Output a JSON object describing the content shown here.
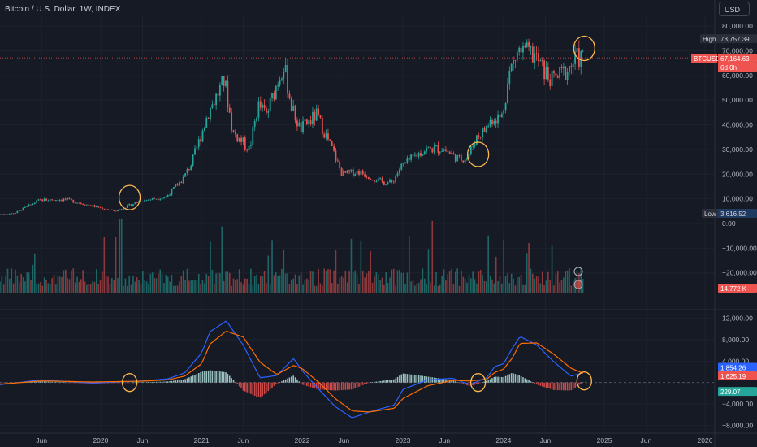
{
  "header": {
    "title": "Bitcoin / U.S. Dollar, 1W, INDEX",
    "currency_button": "USD"
  },
  "price_labels": {
    "high_tag": "High",
    "high_value": "73,757.39",
    "last_symbol": "BTCUSD",
    "last_value": "67,164.63",
    "countdown": "6d 0h",
    "low_tag": "Low",
    "low_value": "3,616.52",
    "volume_value": "14.772 K"
  },
  "colors": {
    "background": "#161a25",
    "up": "#26a69a",
    "down": "#ef5350",
    "macd_line": "#2962ff",
    "signal_line": "#ff6d00",
    "circle": "#ffb74d"
  },
  "chart_data": [
    {
      "type": "line",
      "name": "price",
      "x_start": "2019-01-01",
      "x_end": "2026-01-01",
      "x": [
        "2019-01",
        "2019-03",
        "2019-06",
        "2019-09",
        "2019-12",
        "2020-03",
        "2020-06",
        "2020-09",
        "2020-11",
        "2020-12",
        "2021-01",
        "2021-02",
        "2021-04",
        "2021-05",
        "2021-07",
        "2021-08",
        "2021-09",
        "2021-11",
        "2021-12",
        "2022-01",
        "2022-03",
        "2022-05",
        "2022-06",
        "2022-08",
        "2022-11",
        "2022-12",
        "2023-01",
        "2023-03",
        "2023-04",
        "2023-06",
        "2023-08",
        "2023-09",
        "2023-10",
        "2023-11",
        "2023-12",
        "2024-01",
        "2024-02",
        "2024-03",
        "2024-05",
        "2024-06",
        "2024-07",
        "2024-08",
        "2024-09",
        "2024-10",
        "2024-10-20"
      ],
      "y": [
        3700,
        4100,
        9500,
        9800,
        7300,
        5000,
        9200,
        10800,
        18000,
        24000,
        34000,
        45000,
        58000,
        37000,
        30000,
        48000,
        44000,
        65000,
        47000,
        38000,
        44000,
        29000,
        20000,
        21000,
        16500,
        16800,
        23000,
        28000,
        30000,
        30500,
        26000,
        27000,
        35000,
        38000,
        43000,
        43000,
        62000,
        70000,
        68000,
        62000,
        58000,
        60000,
        63000,
        67000,
        67164.63
      ],
      "ylim": [
        -28000,
        84000
      ],
      "y_ticks": [
        "80,000.00",
        "70,000.00",
        "60,000.00",
        "50,000.00",
        "40,000.00",
        "30,000.00",
        "20,000.00",
        "10,000.00",
        "0.00",
        "−10,000.00",
        "−20,000.00"
      ],
      "high": 73757.39,
      "low": 3616.52,
      "last": 67164.63
    },
    {
      "type": "line",
      "name": "macd",
      "x": [
        "2019-01",
        "2019-06",
        "2019-12",
        "2020-06",
        "2020-09",
        "2020-11",
        "2021-01",
        "2021-02",
        "2021-04",
        "2021-06",
        "2021-08",
        "2021-10",
        "2021-12",
        "2022-01",
        "2022-03",
        "2022-05",
        "2022-07",
        "2022-09",
        "2022-12",
        "2023-01",
        "2023-04",
        "2023-07",
        "2023-09",
        "2023-11",
        "2023-12",
        "2024-01",
        "2024-02",
        "2024-03",
        "2024-05",
        "2024-07",
        "2024-09",
        "2024-10-20"
      ],
      "macd": [
        -400,
        500,
        -100,
        300,
        700,
        1800,
        5500,
        9500,
        11500,
        7000,
        900,
        1300,
        4500,
        2200,
        -1200,
        -4500,
        -6600,
        -5500,
        -4200,
        -1300,
        500,
        800,
        -400,
        900,
        3000,
        3500,
        6300,
        8600,
        7000,
        3900,
        1200,
        1854.26
      ],
      "signal": [
        -300,
        300,
        100,
        250,
        500,
        1200,
        3500,
        7200,
        9600,
        8500,
        3800,
        1500,
        3200,
        2600,
        100,
        -3000,
        -5300,
        -5500,
        -4800,
        -3000,
        -600,
        400,
        300,
        600,
        1900,
        2500,
        4500,
        7300,
        7400,
        5300,
        2700,
        1625.19
      ],
      "histogram_last": 229.07,
      "ylim": [
        -9000,
        13000
      ],
      "y_ticks": [
        "12,000.00",
        "8,000.00",
        "4,000.00",
        "−4,000.00",
        "−8,000.00"
      ],
      "macd_last": "1,854.26",
      "signal_last": "1,625.19",
      "hist_last": "229.07"
    }
  ],
  "x_axis": {
    "labels": [
      {
        "date": "2019-06",
        "text": "Jun"
      },
      {
        "date": "2020-01",
        "text": "2020"
      },
      {
        "date": "2020-06",
        "text": "Jun"
      },
      {
        "date": "2021-01",
        "text": "2021"
      },
      {
        "date": "2021-06",
        "text": "Jun"
      },
      {
        "date": "2022-01",
        "text": "2022"
      },
      {
        "date": "2022-06",
        "text": "Jun"
      },
      {
        "date": "2023-01",
        "text": "2023"
      },
      {
        "date": "2023-06",
        "text": "Jun"
      },
      {
        "date": "2024-01",
        "text": "2024"
      },
      {
        "date": "2024-06",
        "text": "Jun"
      },
      {
        "date": "2025-01",
        "text": "2025"
      },
      {
        "date": "2025-06",
        "text": "Jun"
      },
      {
        "date": "2026-01",
        "text": "2026"
      }
    ]
  },
  "annotations": {
    "circles": [
      {
        "date": "2020-04-15",
        "price": 10500,
        "macd": 0
      },
      {
        "date": "2023-10-01",
        "price": 28000,
        "macd": 0
      },
      {
        "date": "2024-10-20",
        "price": 71000,
        "macd": 300
      }
    ]
  }
}
